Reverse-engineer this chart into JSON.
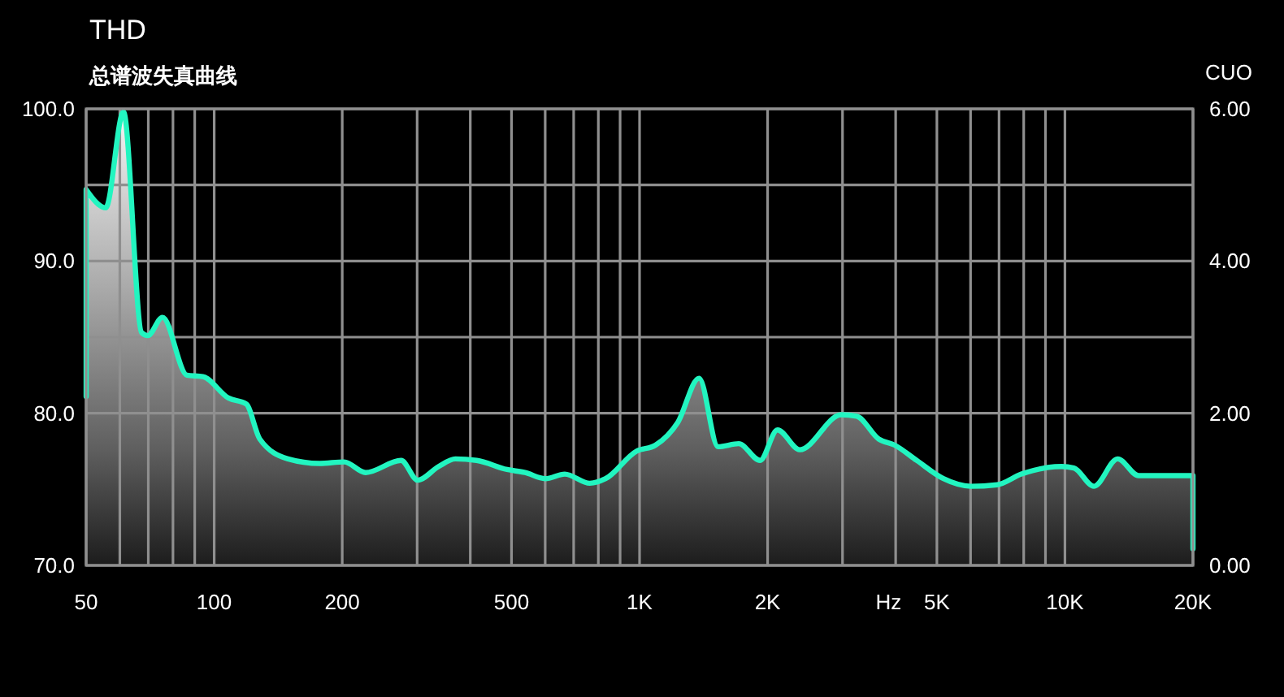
{
  "chart_data": {
    "type": "area",
    "title": "THD",
    "subtitle": "总谱波失真曲线",
    "xlabel": "Hz",
    "y2label": "CUO",
    "log": "x",
    "grid": true,
    "xlim": [
      50,
      20000
    ],
    "xticks": [
      50,
      {
        "value": 60,
        "label": null
      },
      {
        "value": 70,
        "label": null
      },
      {
        "value": 80,
        "label": null
      },
      {
        "value": 90,
        "label": null
      },
      100,
      200,
      {
        "value": 300,
        "label": null
      },
      {
        "value": 400,
        "label": null
      },
      500,
      {
        "value": 600,
        "label": null
      },
      {
        "value": 700,
        "label": null
      },
      {
        "value": 800,
        "label": null
      },
      {
        "value": 900,
        "label": null
      },
      {
        "value": 1000,
        "label": "1K"
      },
      {
        "value": 2000,
        "label": "2K"
      },
      {
        "value": 3000,
        "label": null
      },
      {
        "value": 4000,
        "label": null
      },
      {
        "value": 5000,
        "label": "5K"
      },
      {
        "value": 6000,
        "label": null
      },
      {
        "value": 7000,
        "label": null
      },
      {
        "value": 8000,
        "label": null
      },
      {
        "value": 9000,
        "label": null
      },
      {
        "value": 10000,
        "label": "10K"
      },
      {
        "value": 20000,
        "label": "20K"
      }
    ],
    "ylim": [
      70,
      100
    ],
    "yticks": [
      {
        "value": 70,
        "label": "70.0"
      },
      {
        "value": 80,
        "label": "80.0"
      },
      {
        "value": 85,
        "label": null
      },
      {
        "value": 90,
        "label": "90.0"
      },
      {
        "value": 95,
        "label": null
      },
      {
        "value": 100,
        "label": "100.0"
      }
    ],
    "y2lim": [
      0,
      6
    ],
    "y2ticks": [
      {
        "value": 0,
        "label": "0.00"
      },
      {
        "value": 2,
        "label": "2.00"
      },
      {
        "value": 4,
        "label": "4.00"
      },
      {
        "value": 6,
        "label": "6.00"
      }
    ],
    "x": [
      50,
      50,
      55.6,
      61.2,
      67.5,
      69.8,
      75.6,
      86.3,
      94.1,
      108,
      119,
      128,
      149,
      177,
      202,
      227,
      275,
      301,
      337,
      369,
      414,
      488,
      538,
      600,
      667,
      764,
      832,
      983,
      1090,
      1230,
      1380,
      1530,
      1710,
      1920,
      2110,
      2380,
      2980,
      3240,
      3650,
      3980,
      4480,
      5180,
      6000,
      6930,
      7900,
      9820,
      10500,
      11700,
      13300,
      14900,
      20000,
      20000
    ],
    "series": [
      {
        "color": "#22f5c0",
        "values": [
          81.1,
          94.7,
          93.5,
          99.8,
          85.3,
          85.1,
          86.3,
          82.5,
          82.4,
          81.0,
          80.6,
          78.3,
          77.0,
          76.7,
          76.8,
          76.1,
          76.9,
          75.6,
          76.5,
          77.0,
          76.9,
          76.3,
          76.1,
          75.7,
          76.0,
          75.4,
          75.7,
          77.5,
          77.9,
          79.4,
          82.3,
          77.8,
          78.0,
          76.9,
          78.9,
          77.6,
          79.9,
          79.8,
          78.3,
          77.9,
          76.9,
          75.7,
          75.2,
          75.3,
          76.0,
          76.5,
          76.4,
          75.2,
          77.0,
          75.9,
          75.9,
          71.1
        ]
      }
    ]
  }
}
